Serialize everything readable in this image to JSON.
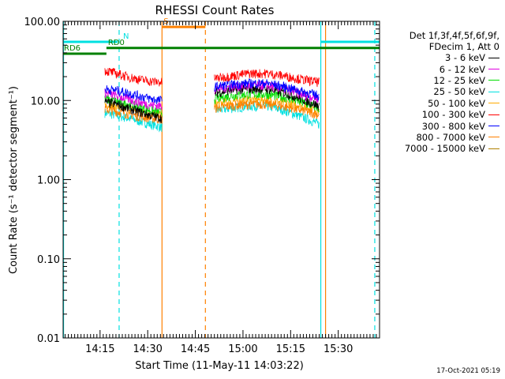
{
  "chart_data": {
    "type": "line",
    "title": "RHESSI Count Rates",
    "xlabel": "Start Time (11-May-11 14:03:22)",
    "ylabel": "Count Rate (s⁻¹ detector segment⁻¹)",
    "yscale": "log",
    "ylim": [
      0.01,
      100
    ],
    "xlim": [
      "14:03:22",
      "15:43:00"
    ],
    "xticks": [
      "14:15",
      "14:30",
      "14:45",
      "15:00",
      "15:15",
      "15:30"
    ],
    "yticks": [
      "0.01",
      "0.10",
      "1.00",
      "10.00",
      "100.00"
    ],
    "legend_header": [
      "Det 1f,3f,4f,5f,6f,9f,",
      "FDecim 1, Att 0"
    ],
    "legend_position": "right",
    "series": [
      {
        "name": "3 - 6 keV",
        "color": "#000000",
        "seg1": [
          9.5,
          9.0,
          8.0,
          7.2,
          6.5,
          6.0
        ],
        "seg2": [
          12.5,
          13.5,
          14.0,
          14.0,
          12.5,
          10.5,
          8.5
        ]
      },
      {
        "name": "6 - 12 keV",
        "color": "#e000e0",
        "seg1": [
          12.5,
          11.5,
          10.5,
          9.5,
          8.8,
          8.5
        ],
        "seg2": [
          14.0,
          15.0,
          15.5,
          15.5,
          14.0,
          12.0,
          10.5
        ]
      },
      {
        "name": "12 - 25 keV",
        "color": "#00dd00",
        "seg1": [
          10.5,
          9.8,
          9.0,
          8.2,
          7.5,
          7.0
        ],
        "seg2": [
          10.5,
          11.5,
          12.0,
          12.0,
          11.0,
          9.5,
          8.0
        ]
      },
      {
        "name": "25 - 50 keV",
        "color": "#00e0e0",
        "seg1": [
          7.0,
          6.5,
          6.0,
          5.5,
          5.0,
          4.6
        ],
        "seg2": [
          7.5,
          8.0,
          8.5,
          8.5,
          7.5,
          6.2,
          5.0
        ]
      },
      {
        "name": "50 - 100 keV",
        "color": "#ffaa00",
        "seg1": [
          9.0,
          8.4,
          7.8,
          7.2,
          6.8,
          6.5
        ],
        "seg2": [
          9.0,
          9.8,
          10.2,
          10.2,
          9.4,
          8.5,
          7.5
        ]
      },
      {
        "name": "100 - 300 keV",
        "color": "#ff0000",
        "seg1": [
          24.0,
          22.0,
          20.0,
          18.5,
          17.5,
          17.0
        ],
        "seg2": [
          19.0,
          20.5,
          22.0,
          22.0,
          20.5,
          18.5,
          17.0
        ]
      },
      {
        "name": "300 - 800 keV",
        "color": "#0000ff",
        "seg1": [
          14.0,
          13.5,
          12.5,
          11.5,
          10.5,
          10.0
        ],
        "seg2": [
          15.0,
          16.0,
          16.5,
          16.5,
          15.0,
          13.0,
          11.5
        ]
      },
      {
        "name": "800 - 7000 keV",
        "color": "#ff8000",
        "seg1": [
          7.8,
          7.3,
          6.8,
          6.3,
          6.0,
          5.8
        ],
        "seg2": [
          8.0,
          8.6,
          9.0,
          9.0,
          8.4,
          7.5,
          6.6
        ]
      },
      {
        "name": "7000 - 15000 keV",
        "color": "#b08000",
        "seg1": [],
        "seg2": []
      }
    ],
    "segment1_time": [
      "14:16:30",
      "14:34:30"
    ],
    "segment2_time": [
      "14:51:00",
      "15:24:00"
    ],
    "vlines": [
      {
        "time": "14:03:30",
        "color": "#00e0e0",
        "style": "solid"
      },
      {
        "time": "14:21:00",
        "color": "#00e0e0",
        "style": "dashed"
      },
      {
        "time": "14:34:30",
        "color": "#ff8000",
        "style": "solid"
      },
      {
        "time": "14:48:10",
        "color": "#ff8000",
        "style": "dashed"
      },
      {
        "time": "15:24:30",
        "color": "#00e0e0",
        "style": "solid"
      },
      {
        "time": "15:26:00",
        "color": "#ff8000",
        "style": "solid"
      },
      {
        "time": "15:41:30",
        "color": "#00e0e0",
        "style": "dashed"
      }
    ],
    "flag_bars": [
      {
        "label": "",
        "color": "#00e0e0",
        "start": "14:03:22",
        "end": "14:20:30",
        "value": 55
      },
      {
        "label": "N",
        "color": "#00e0e0",
        "start": "14:21:00",
        "end": "14:24:00",
        "value": 55,
        "label_only": true
      },
      {
        "label": "",
        "color": "#00e0e0",
        "start": "15:24:30",
        "end": "15:43:00",
        "value": 55
      },
      {
        "label": "S",
        "color": "#ff8000",
        "start": "14:34:30",
        "end": "14:48:10",
        "value": 85
      },
      {
        "label": "RD0",
        "color": "#008000",
        "start": "14:17:00",
        "end": "15:43:00",
        "value": 46
      },
      {
        "label": "RD6",
        "color": "#008000",
        "start": "14:03:22",
        "end": "14:17:00",
        "value": 39
      }
    ],
    "footer": "17-Oct-2021 05:19"
  }
}
